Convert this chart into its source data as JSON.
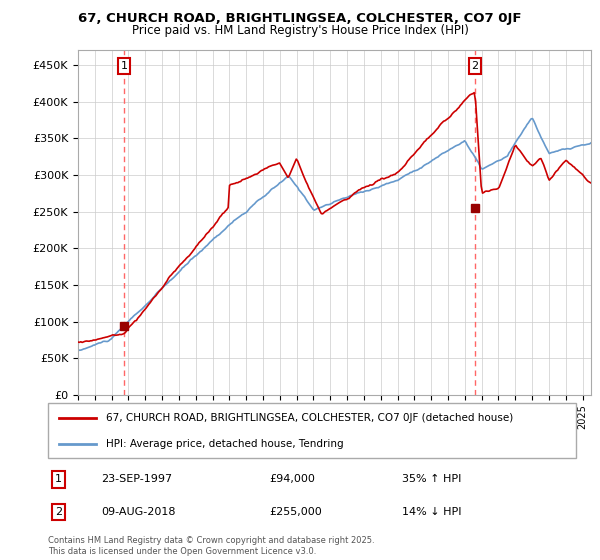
{
  "title1": "67, CHURCH ROAD, BRIGHTLINGSEA, COLCHESTER, CO7 0JF",
  "title2": "Price paid vs. HM Land Registry's House Price Index (HPI)",
  "legend_line1": "67, CHURCH ROAD, BRIGHTLINGSEA, COLCHESTER, CO7 0JF (detached house)",
  "legend_line2": "HPI: Average price, detached house, Tendring",
  "annotation1_date": "23-SEP-1997",
  "annotation1_price": "£94,000",
  "annotation1_hpi": "35% ↑ HPI",
  "annotation2_date": "09-AUG-2018",
  "annotation2_price": "£255,000",
  "annotation2_hpi": "14% ↓ HPI",
  "footer": "Contains HM Land Registry data © Crown copyright and database right 2025.\nThis data is licensed under the Open Government Licence v3.0.",
  "price_color": "#cc0000",
  "hpi_color": "#6699cc",
  "marker_color": "#990000",
  "vline_color": "#ff6666",
  "ylim": [
    0,
    470000
  ],
  "yticks": [
    0,
    50000,
    100000,
    150000,
    200000,
    250000,
    300000,
    350000,
    400000,
    450000
  ],
  "ytick_labels": [
    "£0",
    "£50K",
    "£100K",
    "£150K",
    "£200K",
    "£250K",
    "£300K",
    "£350K",
    "£400K",
    "£450K"
  ],
  "xlim_start": 1995.0,
  "xlim_end": 2025.5
}
